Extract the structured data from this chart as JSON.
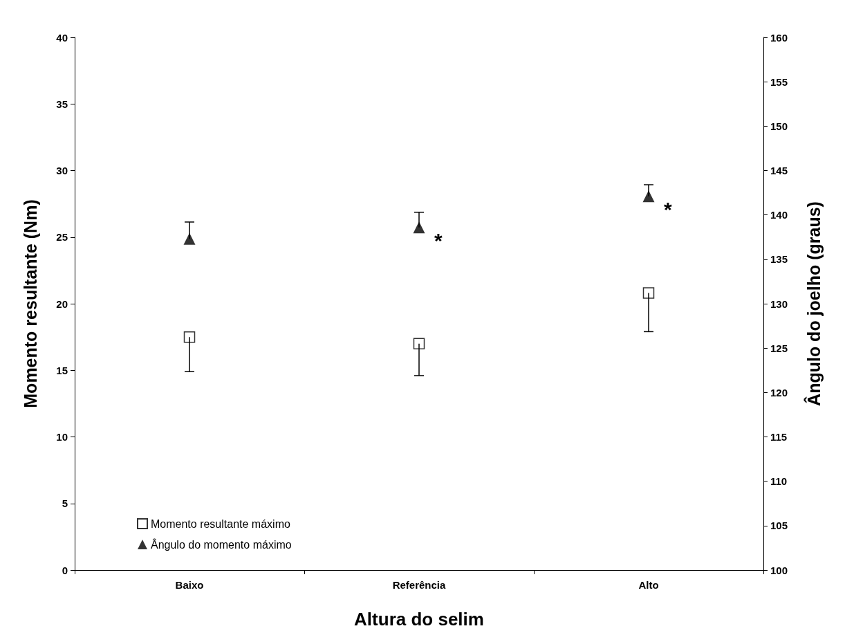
{
  "chart_data": {
    "type": "scatter",
    "xlabel": "Altura do selim",
    "ylabel": "Momento resultante (Nm)",
    "y2label": "Ângulo do joelho (graus)",
    "categories": [
      "Baixo",
      "Referência",
      "Alto"
    ],
    "series": [
      {
        "name": "Momento resultante máximo",
        "color": "#000000",
        "marker": "square",
        "values": [
          17.5,
          17.0,
          20.8
        ],
        "errors": [
          [
            14.9,
            17.5
          ],
          [
            14.6,
            17.0
          ],
          [
            17.9,
            20.8
          ]
        ]
      },
      {
        "name": "Ângulo do momento máximo",
        "color": "#000000",
        "marker": "triangle",
        "axis": "y2",
        "values": [
          137.3,
          138.6,
          142.1
        ],
        "errors": [
          [
            137.3,
            139.2
          ],
          [
            138.6,
            140.3
          ],
          [
            142.1,
            143.4
          ]
        ]
      }
    ],
    "ylim": [
      0,
      40
    ],
    "yticks": [
      0,
      5,
      10,
      15,
      20,
      25,
      30,
      35,
      40
    ],
    "y2lim": [
      100,
      160
    ],
    "y2ticks": [
      100,
      105,
      110,
      115,
      120,
      125,
      130,
      135,
      140,
      145,
      150,
      155,
      160
    ],
    "annotations": [
      "*",
      "*"
    ],
    "legend": "bottom left",
    "grid": false
  }
}
